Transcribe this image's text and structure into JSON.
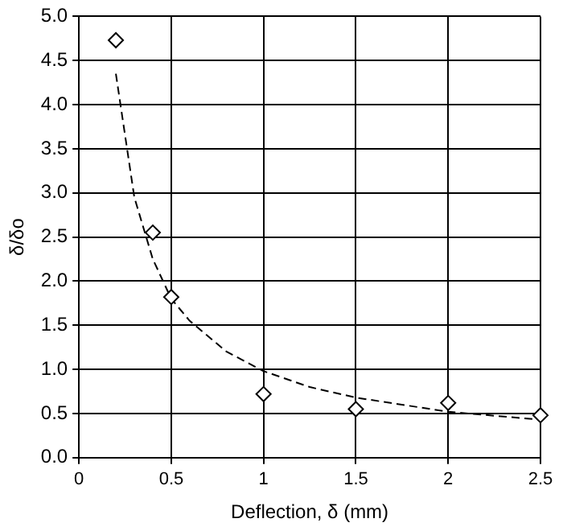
{
  "chart_data": {
    "type": "scatter",
    "xlabel": "Deflection, δ (mm)",
    "ylabel": "δ/δo",
    "xlim": [
      0,
      2.5
    ],
    "xticks": [
      0,
      0.5,
      1,
      1.5,
      2,
      2.5
    ],
    "ylim": [
      0,
      5
    ],
    "yticks": [
      {
        "value": 0,
        "label": "0.0"
      },
      {
        "value": 0.5,
        "label": "0.5"
      },
      {
        "value": 1,
        "label": "1.0"
      },
      {
        "value": 1.5,
        "label": "1.5"
      },
      {
        "value": 2,
        "label": "2.0"
      },
      {
        "value": 2.5,
        "label": "2.5"
      },
      {
        "value": 3,
        "label": "3.0"
      },
      {
        "value": 3.5,
        "label": "3.5"
      },
      {
        "value": 4,
        "label": "4.0"
      },
      {
        "value": 4.5,
        "label": "4.5"
      },
      {
        "value": 5,
        "label": "5.0"
      }
    ],
    "grid": true,
    "legend": false,
    "series": [
      {
        "type": "scatter",
        "color": "#000000",
        "marker": "diamond",
        "x": [
          0.2,
          0.4,
          0.5,
          1,
          1.5,
          2,
          2.5
        ],
        "values": [
          4.73,
          2.55,
          1.82,
          0.72,
          0.55,
          0.62,
          0.48
        ]
      },
      {
        "type": "line",
        "color": "#000000",
        "marker": "none",
        "line_style": "dashed",
        "x": [
          0.2,
          0.3,
          0.4,
          0.5,
          0.6,
          0.8,
          1,
          1.25,
          1.5,
          2,
          2.5
        ],
        "values": [
          4.35,
          2.95,
          2.25,
          1.8,
          1.55,
          1.2,
          0.98,
          0.8,
          0.68,
          0.52,
          0.43
        ]
      }
    ]
  }
}
